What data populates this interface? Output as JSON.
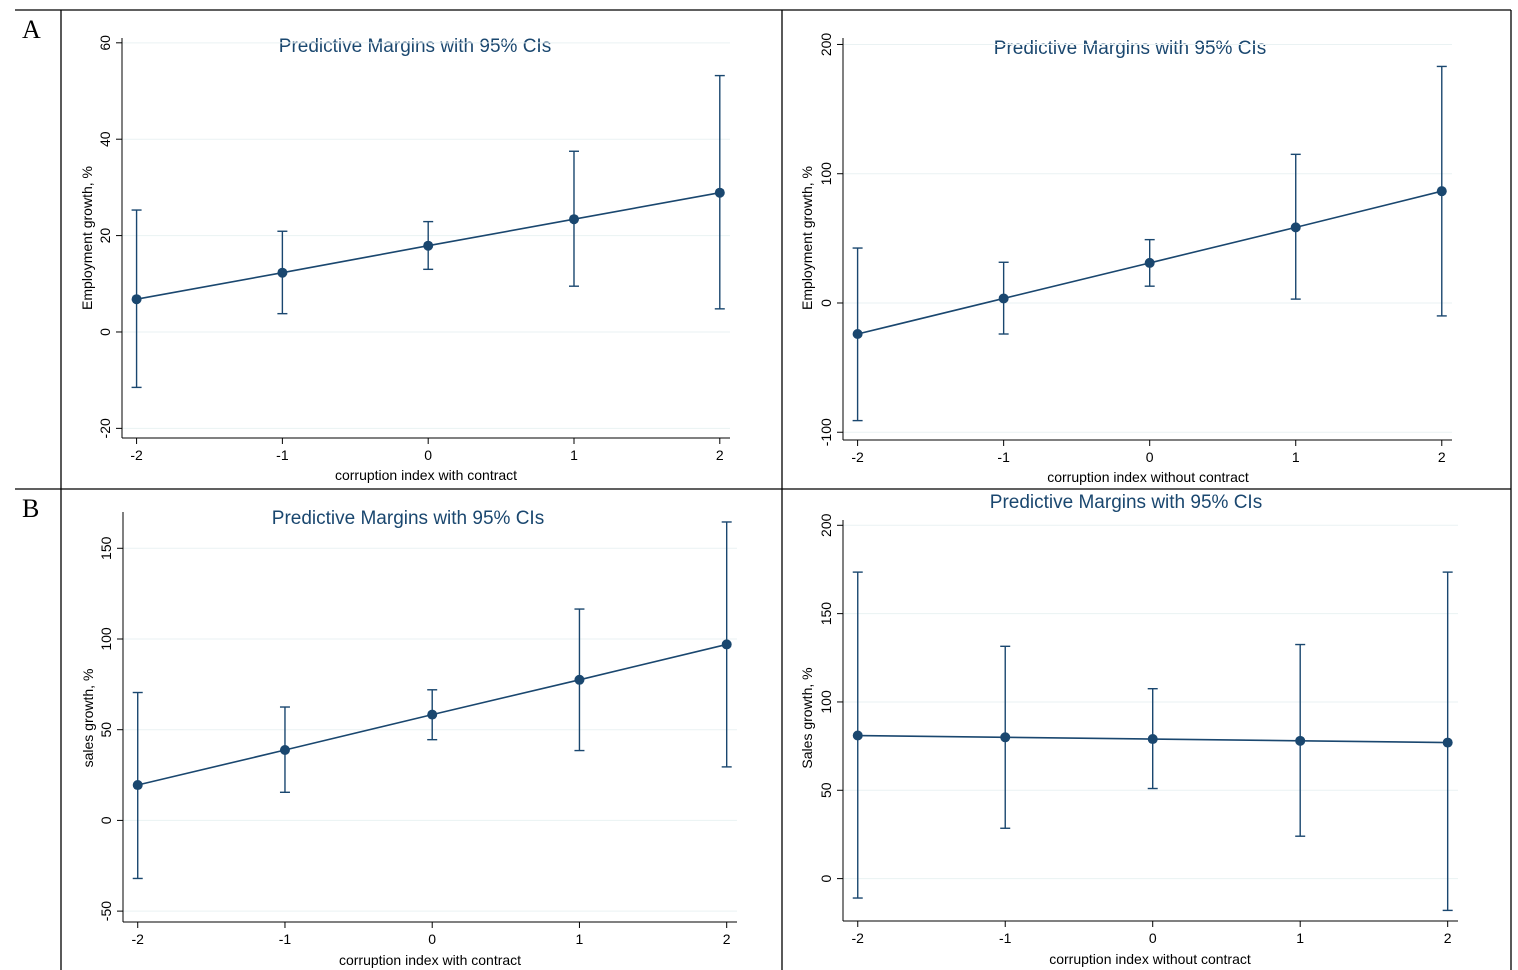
{
  "panel_labels": [
    "A",
    "B"
  ],
  "colors": {
    "series": "#1a476f",
    "grid": "#eaf2f3"
  },
  "chart_data": [
    {
      "type": "line",
      "title": "Predictive Margins with 95% CIs",
      "xlabel": "corruption index with contract",
      "ylabel": "Employment growth, %",
      "x": [
        -2,
        -1,
        0,
        1,
        2
      ],
      "x_ticks": [
        "-2",
        "-1",
        "0",
        "1",
        "2"
      ],
      "y_ticks": [
        "-20",
        "0",
        "20",
        "40",
        "60"
      ],
      "y_tick_values": [
        -20,
        0,
        20,
        40,
        60
      ],
      "xlim": [
        -2.1,
        2.07
      ],
      "ylim": [
        -22,
        61
      ],
      "grid": true,
      "series": [
        {
          "values": [
            6.8,
            12.3,
            17.9,
            23.4,
            28.9
          ],
          "ci_low": [
            -11.5,
            3.8,
            13.0,
            9.5,
            4.8
          ],
          "ci_high": [
            25.3,
            20.9,
            22.9,
            37.5,
            53.2
          ]
        }
      ]
    },
    {
      "type": "line",
      "title": "Predictive Margins with 95% CIs",
      "xlabel": "corruption index without contract",
      "ylabel": "Employment growth, %",
      "x": [
        -2,
        -1,
        0,
        1,
        2
      ],
      "x_ticks": [
        "-2",
        "-1",
        "0",
        "1",
        "2"
      ],
      "y_ticks": [
        "-100",
        "0",
        "100",
        "200"
      ],
      "y_tick_values": [
        -100,
        0,
        100,
        200
      ],
      "xlim": [
        -2.1,
        2.07
      ],
      "ylim": [
        -106,
        205
      ],
      "grid": true,
      "series": [
        {
          "values": [
            -24.0,
            3.5,
            31.0,
            58.5,
            86.5
          ],
          "ci_low": [
            -91.0,
            -24.0,
            13.0,
            3.0,
            -10.0
          ],
          "ci_high": [
            42.5,
            31.5,
            49.0,
            115.0,
            183.0
          ]
        }
      ]
    },
    {
      "type": "line",
      "title": "Predictive Margins with 95% CIs",
      "xlabel": "corruption index with contract",
      "ylabel": "sales growth, %",
      "x": [
        -2,
        -1,
        0,
        1,
        2
      ],
      "x_ticks": [
        "-2",
        "-1",
        "0",
        "1",
        "2"
      ],
      "y_ticks": [
        "-50",
        "0",
        "50",
        "100",
        "150"
      ],
      "y_tick_values": [
        -50,
        0,
        50,
        100,
        150
      ],
      "xlim": [
        -2.1,
        2.07
      ],
      "ylim": [
        -56,
        170
      ],
      "grid": true,
      "series": [
        {
          "values": [
            19.5,
            38.8,
            58.3,
            77.5,
            97.0
          ],
          "ci_low": [
            -32.0,
            15.5,
            44.5,
            38.5,
            29.5
          ],
          "ci_high": [
            70.5,
            62.5,
            72.0,
            116.5,
            164.5
          ]
        }
      ]
    },
    {
      "type": "line",
      "title": "Predictive Margins with 95% CIs",
      "xlabel": "corruption index without contract",
      "ylabel": "Sales growth, %",
      "x": [
        -2,
        -1,
        0,
        1,
        2
      ],
      "x_ticks": [
        "-2",
        "-1",
        "0",
        "1",
        "2"
      ],
      "y_ticks": [
        "0",
        "50",
        "100",
        "150",
        "200"
      ],
      "y_tick_values": [
        0,
        50,
        100,
        150,
        200
      ],
      "xlim": [
        -2.1,
        2.07
      ],
      "ylim": [
        -24,
        203
      ],
      "grid": true,
      "series": [
        {
          "values": [
            81.0,
            80.0,
            79.0,
            78.0,
            77.0
          ],
          "ci_low": [
            -11.0,
            28.5,
            51.0,
            24.0,
            -18.0
          ],
          "ci_high": [
            173.5,
            131.5,
            107.5,
            132.5,
            173.5
          ]
        }
      ]
    }
  ]
}
